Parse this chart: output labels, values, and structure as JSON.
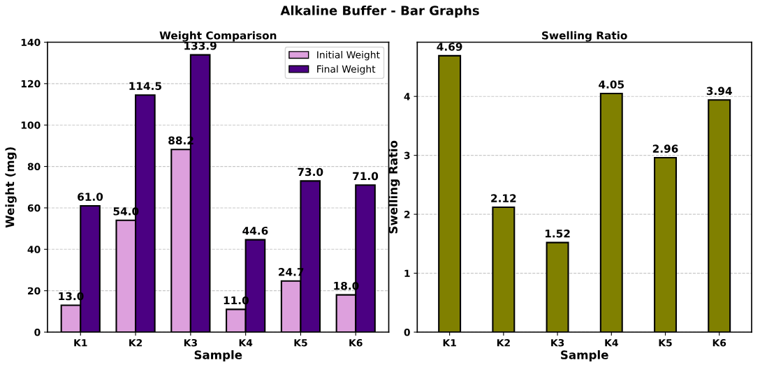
{
  "chart_data": [
    {
      "type": "bar",
      "title": "Weight Comparison",
      "annotations": [
        "Alkaline Buffer - Bar Graphs"
      ],
      "xlabel": "Sample",
      "ylabel": "Weight (mg)",
      "categories": [
        "K1",
        "K2",
        "K3",
        "K4",
        "K5",
        "K6"
      ],
      "series": [
        {
          "name": "Initial Weight",
          "color": "#dda0dd",
          "values": [
            13,
            54,
            88.2,
            11,
            24.7,
            18
          ],
          "value_labels": [
            "13.0",
            "54.0",
            "88.2",
            "11.0",
            "24.7",
            "18.0"
          ]
        },
        {
          "name": "Final Weight",
          "color": "#4b0082",
          "values": [
            61,
            114.5,
            133.9,
            44.6,
            73,
            71
          ],
          "value_labels": [
            "61.0",
            "114.5",
            "133.9",
            "44.6",
            "73.0",
            "71.0"
          ]
        }
      ],
      "ylim": [
        0,
        140
      ],
      "yticks": [
        0,
        20,
        40,
        60,
        80,
        100,
        120,
        140
      ],
      "grid": "y",
      "legend": "top right"
    },
    {
      "type": "bar",
      "title": "Swelling Ratio",
      "xlabel": "Sample",
      "ylabel": "Swelling Ratio",
      "categories": [
        "K1",
        "K2",
        "K3",
        "K4",
        "K5",
        "K6"
      ],
      "series": [
        {
          "color": "#808000",
          "values": [
            4.69,
            2.12,
            1.52,
            4.05,
            2.96,
            3.94
          ]
        }
      ],
      "ylim": [
        0,
        4.92
      ],
      "yticks": [
        0,
        1,
        2,
        3,
        4
      ],
      "grid": "y",
      "data_labels": true
    }
  ]
}
